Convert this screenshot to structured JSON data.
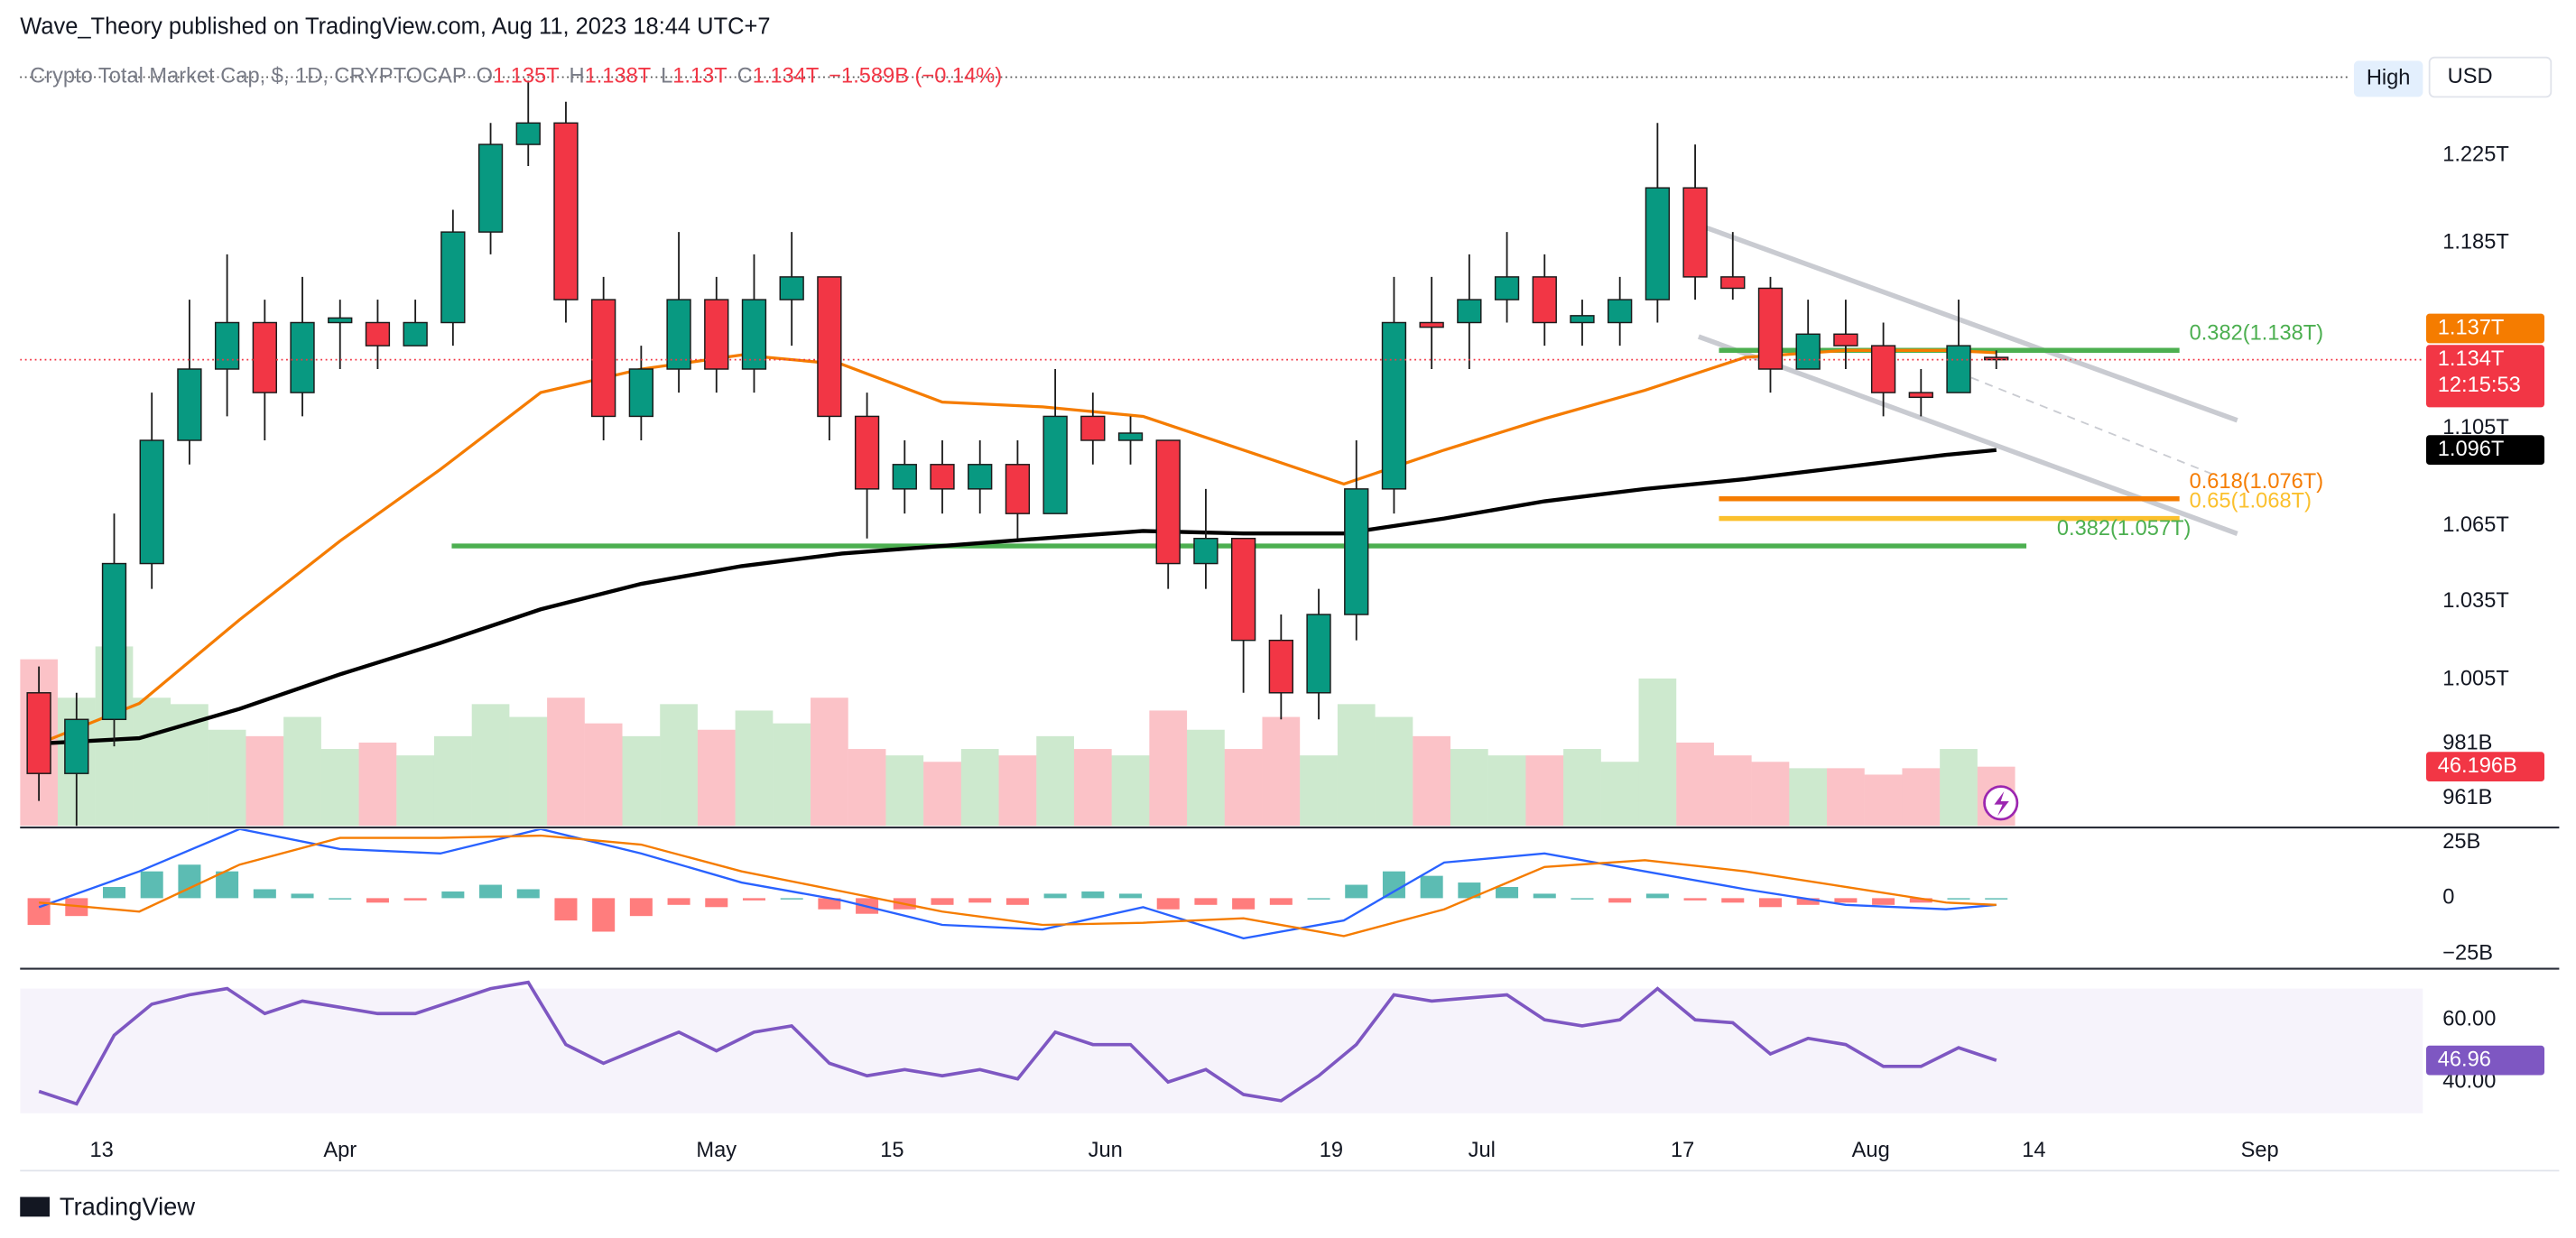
{
  "header": {
    "publisher": "Wave_Theory published on TradingView.com, Aug 11, 2023 18:44 UTC+7"
  },
  "toolbar": {
    "price_source": "High",
    "currency": "USD"
  },
  "footer": {
    "brand": "TradingView"
  },
  "chart_data": [
    {
      "type": "candlestick",
      "title": "Crypto Total Market Cap, $, 1D, CRYPTOCAP",
      "ohlc": [
        {
          "key": "O",
          "value": "1.135T"
        },
        {
          "key": "H",
          "value": "1.138T"
        },
        {
          "key": "L",
          "value": "1.13T"
        },
        {
          "key": "C",
          "value": "1.134T"
        }
      ],
      "change": "−1.589B (−0.14%)",
      "log": true,
      "ylim": [
        0.951,
        1.275
      ],
      "yticks": [
        {
          "value": 1.225,
          "label": "1.225T"
        },
        {
          "value": 1.185,
          "label": "1.185T"
        },
        {
          "value": 1.105,
          "label": "1.105T"
        },
        {
          "value": 1.065,
          "label": "1.065T"
        },
        {
          "value": 1.035,
          "label": "1.035T"
        },
        {
          "value": 1.005,
          "label": "1.005T"
        },
        {
          "value": 0.981,
          "label": "981B"
        },
        {
          "value": 0.961,
          "label": "961B"
        }
      ],
      "xlim": [
        65.5,
        257
      ],
      "xticks": [
        {
          "value": 72,
          "label": "13"
        },
        {
          "value": 91,
          "label": "Apr"
        },
        {
          "value": 121,
          "label": "May"
        },
        {
          "value": 135,
          "label": "15"
        },
        {
          "value": 152,
          "label": "Jun"
        },
        {
          "value": 170,
          "label": "19"
        },
        {
          "value": 182,
          "label": "Jul"
        },
        {
          "value": 198,
          "label": "17"
        },
        {
          "value": 213,
          "label": "Aug"
        },
        {
          "value": 226,
          "label": "14"
        },
        {
          "value": 244,
          "label": "Sep"
        }
      ],
      "grid": false,
      "up_color": "#089981",
      "down_color": "#f23645",
      "x": [
        67,
        70,
        73,
        76,
        79,
        82,
        85,
        88,
        91,
        94,
        97,
        100,
        103,
        106,
        109,
        112,
        115,
        118,
        121,
        124,
        127,
        130,
        133,
        136,
        139,
        142,
        145,
        148,
        151,
        154,
        157,
        160,
        163,
        166,
        169,
        172,
        175,
        178,
        181,
        184,
        187,
        190,
        193,
        196,
        199,
        202,
        205,
        208,
        211,
        214,
        217,
        220,
        223
      ],
      "open": [
        1.0,
        0.97,
        0.99,
        1.05,
        1.1,
        1.13,
        1.15,
        1.12,
        1.15,
        1.15,
        1.14,
        1.15,
        1.19,
        1.23,
        1.24,
        1.16,
        1.11,
        1.13,
        1.16,
        1.13,
        1.16,
        1.17,
        1.11,
        1.08,
        1.09,
        1.08,
        1.09,
        1.07,
        1.11,
        1.1,
        1.1,
        1.05,
        1.06,
        1.02,
        1.0,
        1.03,
        1.08,
        1.15,
        1.15,
        1.16,
        1.17,
        1.15,
        1.15,
        1.16,
        1.21,
        1.17,
        1.165,
        1.13,
        1.145,
        1.14,
        1.12,
        1.12,
        1.135
      ],
      "high": [
        1.01,
        1.0,
        1.07,
        1.12,
        1.16,
        1.18,
        1.16,
        1.17,
        1.16,
        1.16,
        1.16,
        1.2,
        1.24,
        1.26,
        1.25,
        1.17,
        1.14,
        1.19,
        1.17,
        1.18,
        1.19,
        1.17,
        1.12,
        1.1,
        1.1,
        1.1,
        1.1,
        1.13,
        1.12,
        1.11,
        1.1,
        1.08,
        1.06,
        1.03,
        1.04,
        1.1,
        1.17,
        1.17,
        1.18,
        1.19,
        1.18,
        1.16,
        1.17,
        1.24,
        1.23,
        1.19,
        1.17,
        1.16,
        1.16,
        1.15,
        1.13,
        1.16,
        1.138
      ],
      "low": [
        0.96,
        0.94,
        0.98,
        1.04,
        1.09,
        1.11,
        1.1,
        1.11,
        1.13,
        1.13,
        1.14,
        1.14,
        1.18,
        1.22,
        1.15,
        1.1,
        1.1,
        1.12,
        1.12,
        1.12,
        1.14,
        1.1,
        1.06,
        1.07,
        1.07,
        1.07,
        1.06,
        1.07,
        1.09,
        1.09,
        1.04,
        1.04,
        1.0,
        0.99,
        0.99,
        1.02,
        1.07,
        1.13,
        1.13,
        1.15,
        1.14,
        1.14,
        1.14,
        1.15,
        1.16,
        1.16,
        1.12,
        1.13,
        1.13,
        1.11,
        1.11,
        1.12,
        1.13
      ],
      "close": [
        0.97,
        0.99,
        1.05,
        1.1,
        1.13,
        1.15,
        1.12,
        1.15,
        1.152,
        1.14,
        1.15,
        1.19,
        1.23,
        1.24,
        1.16,
        1.11,
        1.13,
        1.16,
        1.13,
        1.16,
        1.17,
        1.11,
        1.08,
        1.09,
        1.08,
        1.09,
        1.07,
        1.11,
        1.1,
        1.103,
        1.05,
        1.06,
        1.02,
        1.0,
        1.03,
        1.08,
        1.15,
        1.148,
        1.16,
        1.17,
        1.15,
        1.153,
        1.16,
        1.21,
        1.17,
        1.165,
        1.13,
        1.145,
        1.14,
        1.12,
        1.118,
        1.14,
        1.134
      ],
      "volume": {
        "vlim": [
          0,
          606
        ],
        "values": [
          130,
          100,
          140,
          100,
          95,
          75,
          70,
          85,
          60,
          65,
          55,
          70,
          95,
          85,
          100,
          80,
          70,
          95,
          75,
          90,
          80,
          100,
          60,
          55,
          50,
          60,
          55,
          70,
          60,
          55,
          90,
          75,
          60,
          85,
          55,
          95,
          85,
          70,
          60,
          55,
          55,
          60,
          50,
          115,
          65,
          55,
          50,
          45,
          45,
          40,
          45,
          60,
          46.196
        ],
        "last_label": "46.196B"
      },
      "lines": [
        {
          "color": "#f57c00",
          "x": [
            67,
            75,
            83,
            91,
            99,
            107,
            115,
            123,
            131,
            139,
            147,
            155,
            163,
            171,
            179,
            187,
            195,
            203,
            211,
            219,
            223
          ],
          "values": [
            0.981,
            0.996,
            1.028,
            1.059,
            1.088,
            1.12,
            1.13,
            1.136,
            1.132,
            1.116,
            1.114,
            1.11,
            1.096,
            1.082,
            1.096,
            1.109,
            1.121,
            1.135,
            1.138,
            1.138,
            1.137
          ],
          "last_label": "1.137T"
        },
        {
          "color": "#000000",
          "x": [
            67,
            75,
            83,
            91,
            99,
            107,
            115,
            123,
            131,
            139,
            147,
            155,
            163,
            171,
            179,
            187,
            195,
            203,
            211,
            219,
            223
          ],
          "values": [
            0.981,
            0.983,
            0.994,
            1.007,
            1.019,
            1.032,
            1.042,
            1.049,
            1.054,
            1.057,
            1.06,
            1.063,
            1.062,
            1.062,
            1.068,
            1.075,
            1.08,
            1.084,
            1.089,
            1.094,
            1.096
          ],
          "last_label": "1.096T"
        }
      ],
      "last_price": {
        "value": 1.134,
        "label": "1.134T",
        "countdown": "12:15:53",
        "color": "#f23645"
      },
      "levels": [
        {
          "label": "0.382(1.138T)",
          "value": 1.138,
          "color": "#4caf50",
          "x": [
            200.9,
            237.6
          ]
        },
        {
          "label": "0.618(1.076T)",
          "value": 1.076,
          "color": "#f57c00",
          "x": [
            200.9,
            237.6
          ]
        },
        {
          "label": "0.65(1.068T)",
          "value": 1.068,
          "color": "#fbc02d",
          "x": [
            200.9,
            237.6
          ]
        },
        {
          "label": "0.382(1.057T)",
          "value": 1.057,
          "color": "#4caf50",
          "x": [
            99.9,
            225.4
          ]
        }
      ]
    },
    {
      "type": "macd",
      "ylim": [
        -31.6,
        30.9
      ],
      "yticks": [
        {
          "value": 25,
          "label": "25B"
        },
        0,
        {
          "value": -25,
          "label": "−25B"
        }
      ],
      "x": [
        67,
        75,
        83,
        91,
        99,
        107,
        115,
        123,
        131,
        139,
        147,
        155,
        163,
        171,
        179,
        187,
        195,
        203,
        211,
        219,
        223
      ],
      "macd": {
        "color": "#2962ff",
        "values": [
          -4,
          12,
          31,
          22,
          20,
          31,
          20,
          7,
          -1,
          -12,
          -14,
          -4,
          -18,
          -10,
          16,
          20,
          12,
          4,
          -3,
          -5,
          -3
        ]
      },
      "signal": {
        "color": "#f57c00",
        "values": [
          -2,
          -6,
          15,
          27,
          27,
          28,
          24,
          12,
          3,
          -6,
          -12,
          -11,
          -9,
          -17,
          -5,
          14,
          17,
          12,
          5,
          -2,
          -3
        ]
      },
      "hist": {
        "up_color": "#26a69a",
        "down_color": "#ff5252",
        "x": [
          67,
          70,
          73,
          76,
          79,
          82,
          85,
          88,
          91,
          94,
          97,
          100,
          103,
          106,
          109,
          112,
          115,
          118,
          121,
          124,
          127,
          130,
          133,
          136,
          139,
          142,
          145,
          148,
          151,
          154,
          157,
          160,
          163,
          166,
          169,
          172,
          175,
          178,
          181,
          184,
          187,
          190,
          193,
          196,
          199,
          202,
          205,
          208,
          211,
          214,
          217,
          220,
          223
        ],
        "values": [
          -12,
          -8,
          5,
          12,
          15,
          12,
          4,
          2,
          0,
          -2,
          -1,
          3,
          6,
          4,
          -10,
          -15,
          -8,
          -3,
          -4,
          -1,
          0,
          -5,
          -7,
          -5,
          -3,
          -2,
          -3,
          2,
          3,
          2,
          -5,
          -3,
          -5,
          -3,
          0,
          6,
          12,
          10,
          7,
          5,
          2,
          0,
          -2,
          2,
          -1,
          -2,
          -4,
          -3,
          -2,
          -3,
          -2,
          0,
          0
        ]
      }
    },
    {
      "type": "rsi",
      "ylim": [
        12.1,
        75.3
      ],
      "yticks": [
        {
          "value": 60,
          "label": "60.00"
        },
        {
          "value": 40,
          "label": "40.00"
        }
      ],
      "band": [
        30,
        70
      ],
      "color": "#7e57c2",
      "x": [
        67,
        70,
        73,
        76,
        79,
        82,
        85,
        88,
        91,
        94,
        97,
        100,
        103,
        106,
        109,
        112,
        115,
        118,
        121,
        124,
        127,
        130,
        133,
        136,
        139,
        142,
        145,
        148,
        151,
        154,
        157,
        160,
        163,
        166,
        169,
        172,
        175,
        178,
        181,
        184,
        187,
        190,
        193,
        196,
        199,
        202,
        205,
        208,
        211,
        214,
        217,
        220,
        223
      ],
      "values": [
        37,
        33,
        55,
        65,
        68,
        70,
        62,
        66,
        64,
        62,
        62,
        66,
        70,
        72,
        52,
        46,
        51,
        56,
        50,
        56,
        58,
        46,
        42,
        44,
        42,
        44,
        41,
        56,
        52,
        52,
        40,
        44,
        36,
        34,
        42,
        52,
        68,
        66,
        67,
        68,
        60,
        58,
        60,
        70,
        60,
        59,
        49,
        54,
        52,
        45,
        45,
        51,
        46.96
      ],
      "last_label": "46.96"
    }
  ]
}
